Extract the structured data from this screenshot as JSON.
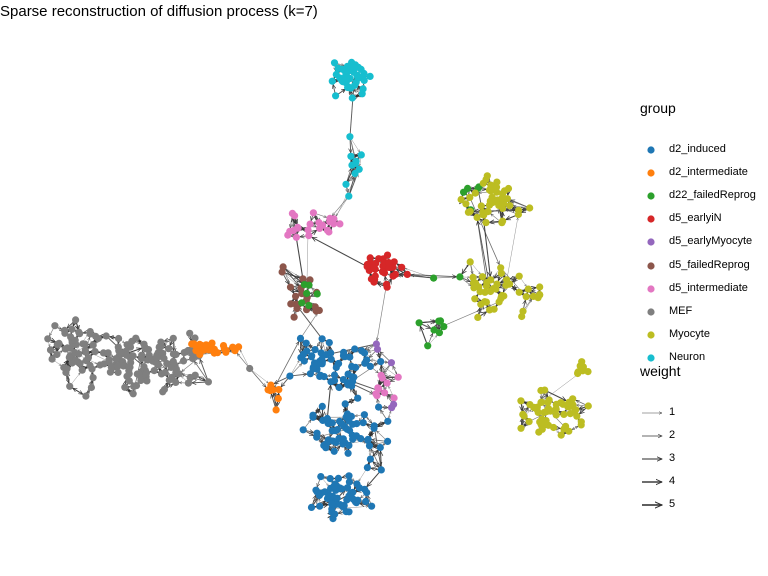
{
  "chart_data": {
    "type": "network",
    "title": "Sparse reconstruction of diffusion process (k=7)",
    "legend_position": "right",
    "group_legend": {
      "title": "group",
      "items": [
        {
          "label": "d2_induced",
          "color": "#1f77b4"
        },
        {
          "label": "d2_intermediate",
          "color": "#ff7f0e"
        },
        {
          "label": "d22_failedReprog",
          "color": "#2ca02c"
        },
        {
          "label": "d5_earlyiN",
          "color": "#d62728"
        },
        {
          "label": "d5_earlyMyocyte",
          "color": "#9467bd"
        },
        {
          "label": "d5_failedReprog",
          "color": "#8c564b"
        },
        {
          "label": "d5_intermediate",
          "color": "#e377c2"
        },
        {
          "label": "MEF",
          "color": "#7f7f7f"
        },
        {
          "label": "Myocyte",
          "color": "#bcbd22"
        },
        {
          "label": "Neuron",
          "color": "#17becf"
        }
      ]
    },
    "weight_legend": {
      "title": "weight",
      "items": [
        {
          "label": "1",
          "weight": 1
        },
        {
          "label": "2",
          "weight": 2
        },
        {
          "label": "3",
          "weight": 3
        },
        {
          "label": "4",
          "weight": 4
        },
        {
          "label": "5",
          "weight": 5
        }
      ]
    },
    "edge_color": "#333333",
    "k": 7
  }
}
